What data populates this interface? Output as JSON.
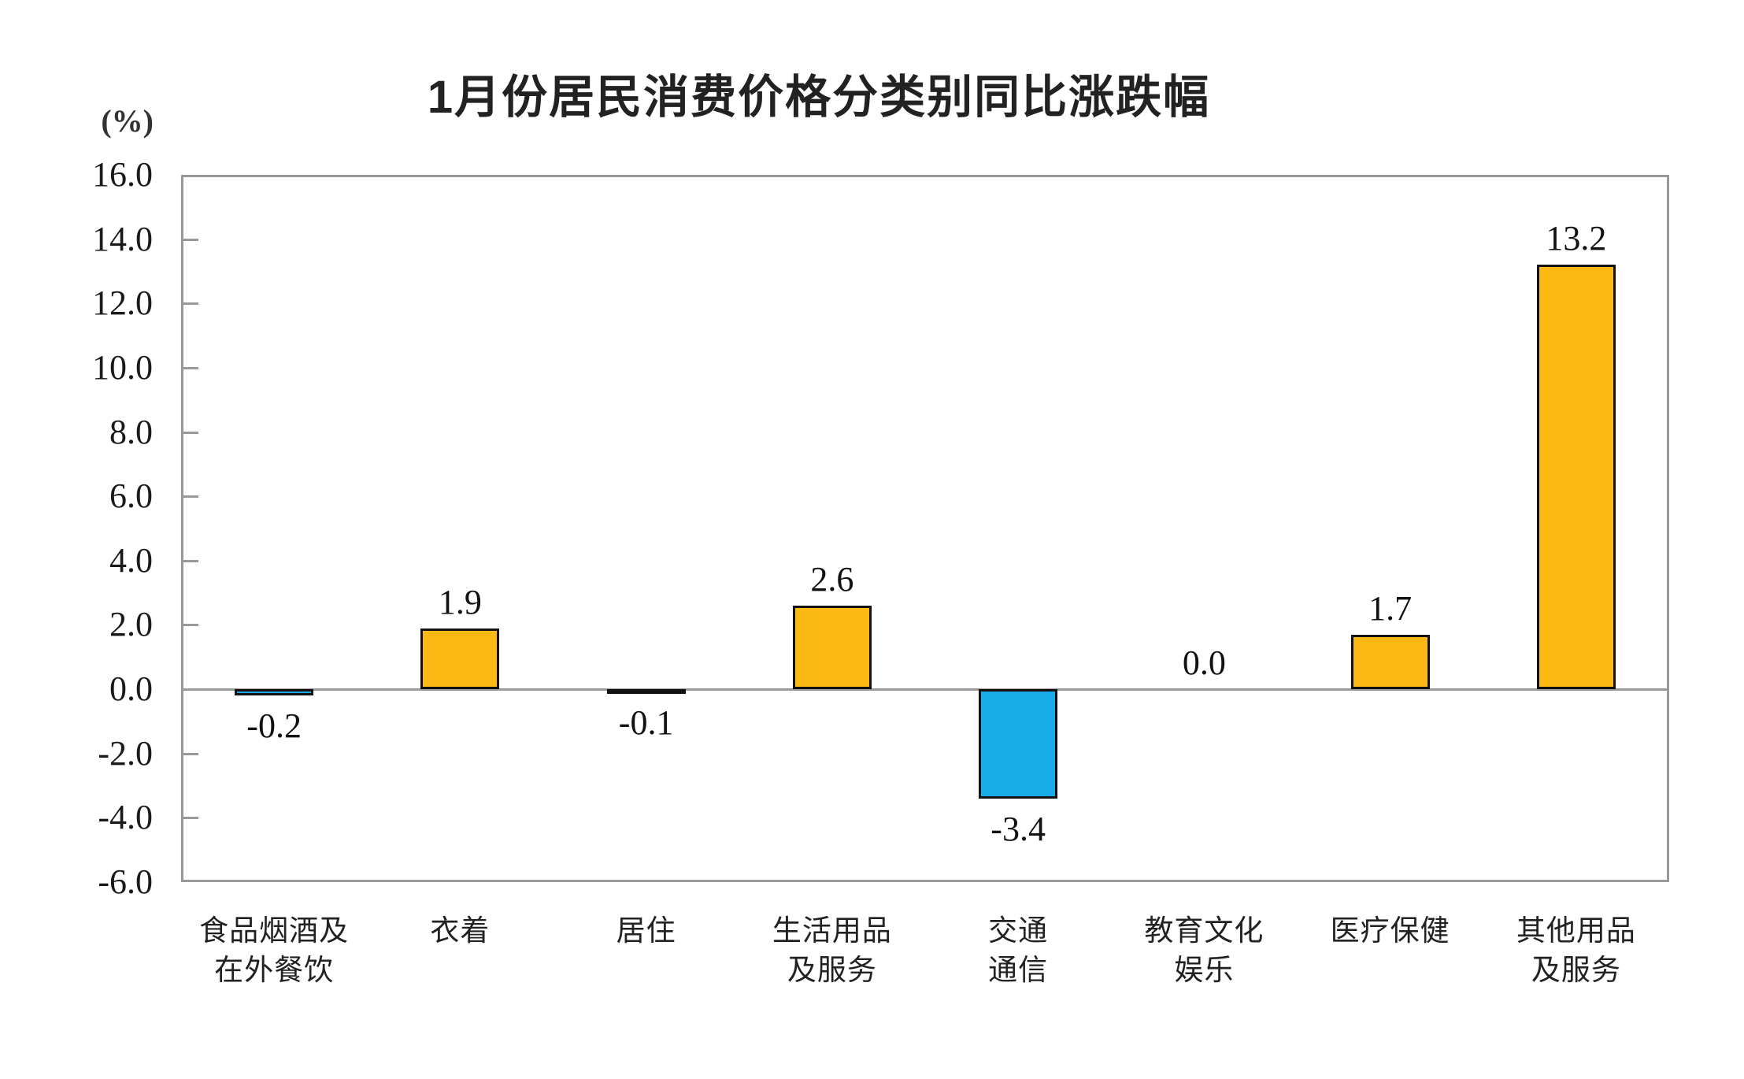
{
  "chart_data": {
    "type": "bar",
    "title": "1月份居民消费价格分类别同比涨跌幅",
    "unit_label": "(%)",
    "categories": [
      [
        "食品烟酒及",
        "在外餐饮"
      ],
      [
        "衣着"
      ],
      [
        "居住"
      ],
      [
        "生活用品",
        "及服务"
      ],
      [
        "交通",
        "通信"
      ],
      [
        "教育文化",
        "娱乐"
      ],
      [
        "医疗保健"
      ],
      [
        "其他用品",
        "及服务"
      ]
    ],
    "values": [
      -0.2,
      1.9,
      -0.1,
      2.6,
      -3.4,
      0.0,
      1.7,
      13.2
    ],
    "value_labels": [
      "-0.2",
      "1.9",
      "-0.1",
      "2.6",
      "-3.4",
      "0.0",
      "1.7",
      "13.2"
    ],
    "yticks": [
      "16.0",
      "14.0",
      "12.0",
      "10.0",
      "8.0",
      "6.0",
      "4.0",
      "2.0",
      "0.0",
      "-2.0",
      "-4.0",
      "-6.0"
    ],
    "ylim": [
      -6.0,
      16.0
    ],
    "ytick_step": 2.0,
    "xlabel": "",
    "ylabel": "(%)",
    "grid": "zero-line-only",
    "legend": "none",
    "colors": {
      "positive_bar": "#FCB813",
      "negative_bar": "#19ACE8",
      "bar_border": "#111111",
      "axis_frame": "#999999",
      "text": "#1A1A1A"
    }
  }
}
